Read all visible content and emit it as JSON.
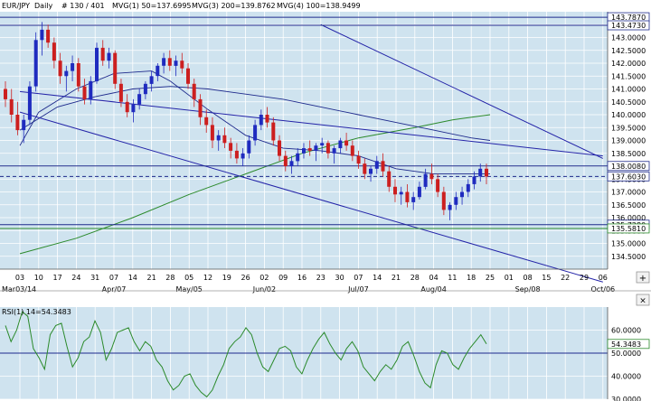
{
  "header": {
    "symbol": "EUR/JPY",
    "period": "Daily",
    "bar_info": "# 130 / 401",
    "indicators": [
      {
        "label": "MVG(1) 50=137.6995",
        "color": "#1e2a8c"
      },
      {
        "label": "MVG(3) 200=139.8762",
        "color": "#2b8a2b"
      },
      {
        "label": "MVG(4) 100=138.9499",
        "color": "#1e2a8c"
      }
    ]
  },
  "colors": {
    "background": "#cfe3ef",
    "up_candle": "#1f2bbf",
    "down_candle": "#cc1f1f",
    "channel": "#2424a8",
    "ma_green": "#2b8a2b",
    "ma_blue": "#1e2a8c",
    "rsi_line": "#2b8a2b"
  },
  "chart_data": [
    {
      "type": "candlestick",
      "title": "EUR/JPY",
      "ylim": [
        134.0,
        144.0
      ],
      "y_ticks": [
        134.5,
        135.0,
        135.5,
        136.0,
        136.5,
        137.0,
        137.5,
        138.0,
        138.5,
        139.0,
        139.5,
        140.0,
        140.5,
        141.0,
        141.5,
        142.0,
        142.5,
        143.0,
        143.5
      ],
      "x_day_ticks": [
        "03",
        "10",
        "17",
        "24",
        "31",
        "07",
        "14",
        "21",
        "28",
        "05",
        "12",
        "19",
        "26",
        "02",
        "09",
        "16",
        "23",
        "30",
        "07",
        "14",
        "21",
        "28",
        "04",
        "11",
        "18",
        "25",
        "01",
        "08",
        "15",
        "22",
        "29",
        "06"
      ],
      "x_month_ticks": [
        {
          "label": "Mar03/14",
          "index": 0
        },
        {
          "label": "Apr/07",
          "index": 5
        },
        {
          "label": "May/05",
          "index": 9
        },
        {
          "label": "Jun/02",
          "index": 13
        },
        {
          "label": "Jul/07",
          "index": 18
        },
        {
          "label": "Aug/04",
          "index": 22
        },
        {
          "label": "Sep/08",
          "index": 27
        },
        {
          "label": "Oct/06",
          "index": 31
        }
      ],
      "price_levels": [
        {
          "label": "143.7870",
          "value": 143.787,
          "color": "#1e2a8c"
        },
        {
          "label": "143.4730",
          "value": 143.473,
          "color": "#1e2a8c"
        },
        {
          "label": "138.0080",
          "value": 138.008,
          "color": "#1e2a8c"
        },
        {
          "label": "137.6030",
          "value": 137.603,
          "color": "#1e2a8c",
          "dashed": true
        },
        {
          "label": "135.7280",
          "value": 135.728,
          "color": "#1e2a8c"
        },
        {
          "label": "135.5810",
          "value": 135.581,
          "color": "#2b8a2b"
        }
      ],
      "trend_lines": [
        {
          "from": [
            0,
            140.9
          ],
          "to": [
            31,
            138.4
          ]
        },
        {
          "from": [
            0,
            140.1
          ],
          "to": [
            31,
            133.5
          ]
        },
        {
          "from": [
            16,
            143.5
          ],
          "to": [
            31,
            138.3
          ]
        }
      ],
      "candles": [
        [
          141.0,
          141.3,
          140.3,
          140.6
        ],
        [
          140.6,
          141.0,
          139.7,
          140.0
        ],
        [
          140.0,
          140.5,
          139.2,
          139.4
        ],
        [
          139.4,
          140.0,
          138.9,
          139.8
        ],
        [
          139.8,
          141.3,
          139.6,
          141.1
        ],
        [
          141.1,
          143.2,
          140.9,
          142.9
        ],
        [
          142.9,
          143.6,
          142.3,
          143.3
        ],
        [
          143.3,
          143.5,
          142.6,
          142.8
        ],
        [
          142.8,
          143.0,
          141.8,
          142.1
        ],
        [
          142.1,
          142.4,
          141.2,
          141.5
        ],
        [
          141.5,
          141.9,
          140.9,
          141.7
        ],
        [
          141.7,
          142.3,
          141.3,
          142.0
        ],
        [
          142.0,
          142.2,
          140.9,
          141.1
        ],
        [
          141.1,
          141.4,
          140.4,
          140.6
        ],
        [
          140.6,
          141.5,
          140.4,
          141.3
        ],
        [
          141.3,
          142.8,
          141.2,
          142.6
        ],
        [
          142.6,
          142.9,
          141.9,
          142.1
        ],
        [
          142.1,
          142.6,
          141.8,
          142.4
        ],
        [
          142.4,
          142.5,
          141.0,
          141.2
        ],
        [
          141.2,
          141.4,
          140.3,
          140.5
        ],
        [
          140.5,
          140.8,
          139.9,
          140.1
        ],
        [
          140.1,
          140.6,
          139.7,
          140.4
        ],
        [
          140.4,
          141.0,
          140.2,
          140.8
        ],
        [
          140.8,
          141.3,
          140.6,
          141.2
        ],
        [
          141.2,
          141.7,
          140.9,
          141.5
        ],
        [
          141.5,
          142.0,
          141.3,
          141.9
        ],
        [
          141.9,
          142.4,
          141.6,
          142.2
        ],
        [
          142.2,
          142.5,
          141.7,
          141.9
        ],
        [
          141.9,
          142.3,
          141.5,
          142.1
        ],
        [
          142.1,
          142.4,
          141.6,
          141.8
        ],
        [
          141.8,
          142.0,
          141.0,
          141.2
        ],
        [
          141.2,
          141.4,
          140.3,
          140.6
        ],
        [
          140.6,
          140.8,
          139.6,
          139.9
        ],
        [
          139.9,
          140.2,
          139.3,
          139.6
        ],
        [
          139.6,
          139.9,
          138.7,
          139.0
        ],
        [
          139.0,
          139.4,
          138.6,
          139.2
        ],
        [
          139.2,
          139.5,
          138.7,
          138.9
        ],
        [
          138.9,
          139.1,
          138.3,
          138.6
        ],
        [
          138.6,
          138.9,
          138.1,
          138.3
        ],
        [
          138.3,
          138.7,
          138.0,
          138.5
        ],
        [
          138.5,
          139.2,
          138.3,
          139.0
        ],
        [
          139.0,
          139.8,
          138.8,
          139.6
        ],
        [
          139.6,
          140.2,
          139.4,
          140.0
        ],
        [
          140.0,
          140.3,
          139.5,
          139.7
        ],
        [
          139.7,
          139.9,
          138.8,
          139.0
        ],
        [
          139.0,
          139.2,
          138.2,
          138.4
        ],
        [
          138.4,
          138.6,
          137.8,
          138.0
        ],
        [
          138.0,
          138.4,
          137.7,
          138.2
        ],
        [
          138.2,
          138.7,
          138.0,
          138.5
        ],
        [
          138.5,
          138.9,
          138.3,
          138.7
        ],
        [
          138.7,
          139.0,
          138.4,
          138.6
        ],
        [
          138.6,
          138.9,
          138.2,
          138.8
        ],
        [
          138.8,
          139.1,
          138.5,
          138.9
        ],
        [
          138.9,
          139.0,
          138.3,
          138.5
        ],
        [
          138.5,
          138.8,
          138.1,
          138.7
        ],
        [
          138.7,
          139.1,
          138.5,
          139.0
        ],
        [
          139.0,
          139.3,
          138.6,
          138.8
        ],
        [
          138.8,
          139.0,
          138.2,
          138.4
        ],
        [
          138.4,
          138.6,
          137.9,
          138.1
        ],
        [
          138.1,
          138.3,
          137.5,
          137.7
        ],
        [
          137.7,
          138.0,
          137.4,
          137.9
        ],
        [
          137.9,
          138.4,
          137.7,
          138.2
        ],
        [
          138.2,
          138.5,
          137.6,
          137.8
        ],
        [
          137.8,
          138.0,
          137.0,
          137.2
        ],
        [
          137.2,
          137.5,
          136.6,
          136.9
        ],
        [
          136.9,
          137.2,
          136.5,
          137.0
        ],
        [
          137.0,
          137.3,
          136.4,
          136.6
        ],
        [
          136.6,
          137.0,
          136.3,
          136.8
        ],
        [
          136.8,
          137.4,
          136.7,
          137.2
        ],
        [
          137.2,
          137.9,
          137.1,
          137.7
        ],
        [
          137.7,
          138.1,
          137.3,
          137.5
        ],
        [
          137.5,
          137.7,
          136.8,
          137.0
        ],
        [
          137.0,
          137.2,
          136.1,
          136.3
        ],
        [
          136.3,
          136.6,
          135.9,
          136.5
        ],
        [
          136.5,
          137.0,
          136.3,
          136.8
        ],
        [
          136.8,
          137.2,
          136.5,
          137.0
        ],
        [
          137.0,
          137.5,
          136.8,
          137.3
        ],
        [
          137.3,
          137.8,
          137.1,
          137.6
        ],
        [
          137.6,
          138.1,
          137.4,
          137.9
        ],
        [
          137.9,
          138.1,
          137.3,
          137.6
        ]
      ],
      "ma_green": [
        [
          0,
          134.6
        ],
        [
          3,
          135.2
        ],
        [
          6,
          136.0
        ],
        [
          9,
          136.9
        ],
        [
          12,
          137.7
        ],
        [
          15,
          138.5
        ],
        [
          18,
          139.1
        ],
        [
          21,
          139.5
        ],
        [
          23,
          139.8
        ],
        [
          25,
          140.0
        ]
      ],
      "ma_blue_100": [
        [
          0,
          139.4
        ],
        [
          2,
          140.3
        ],
        [
          4,
          140.7
        ],
        [
          6,
          141.0
        ],
        [
          8,
          141.1
        ],
        [
          10,
          141.0
        ],
        [
          12,
          140.8
        ],
        [
          14,
          140.6
        ],
        [
          16,
          140.3
        ],
        [
          18,
          140.0
        ],
        [
          20,
          139.7
        ],
        [
          22,
          139.4
        ],
        [
          24,
          139.1
        ],
        [
          25,
          139.0
        ]
      ],
      "ma_blue_50": [
        [
          0,
          138.8
        ],
        [
          1,
          140.1
        ],
        [
          3,
          141.0
        ],
        [
          5,
          141.6
        ],
        [
          7,
          141.7
        ],
        [
          8,
          141.3
        ],
        [
          10,
          140.2
        ],
        [
          12,
          139.2
        ],
        [
          14,
          138.7
        ],
        [
          16,
          138.6
        ],
        [
          18,
          138.4
        ],
        [
          20,
          137.9
        ],
        [
          22,
          137.7
        ],
        [
          24,
          137.7
        ],
        [
          25,
          137.7
        ]
      ]
    },
    {
      "type": "line",
      "title": "RSI(1) 14=54.3483",
      "ylim": [
        30,
        70
      ],
      "y_ticks": [
        30.0,
        40.0,
        50.0,
        60.0
      ],
      "reference_level": 50,
      "last_value_label": "54.3483",
      "values": [
        62,
        55,
        60,
        68,
        66,
        52,
        48,
        43,
        58,
        62,
        63,
        53,
        44,
        48,
        55,
        57,
        64,
        59,
        47,
        52,
        59,
        60,
        61,
        55,
        51,
        55,
        53,
        47,
        44,
        38,
        34,
        36,
        40,
        41,
        36,
        33,
        31,
        34,
        40,
        45,
        52,
        55,
        57,
        61,
        58,
        50,
        44,
        42,
        47,
        52,
        53,
        51,
        44,
        41,
        47,
        52,
        56,
        59,
        54,
        50,
        47,
        52,
        55,
        51,
        44,
        41,
        38,
        42,
        45,
        43,
        47,
        53,
        55,
        49,
        42,
        37,
        35,
        45,
        51,
        50,
        45,
        43,
        48,
        52,
        55,
        58,
        54
      ]
    }
  ]
}
